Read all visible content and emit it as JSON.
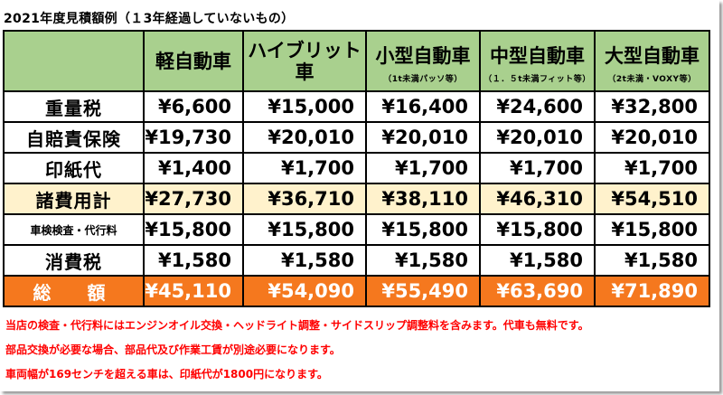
{
  "caption": "2021年度見積額例（１3年経過していないもの）",
  "headers": [
    {
      "name": "",
      "note": ""
    },
    {
      "name": "軽自動車",
      "note": ""
    },
    {
      "name": "ハイブリット車",
      "note": ""
    },
    {
      "name": "小型自動車",
      "note": "（1t未満パッソ等）"
    },
    {
      "name": "中型自動車",
      "note": "（１．５t未満フィット等）"
    },
    {
      "name": "大型自動車",
      "note": "（2t未満・VOXY等）"
    }
  ],
  "rows": [
    {
      "label": "重量税",
      "values": [
        "¥6,600",
        "¥15,000",
        "¥16,400",
        "¥24,600",
        "¥32,800"
      ]
    },
    {
      "label": "自賠責保険",
      "values": [
        "¥19,730",
        "¥20,010",
        "¥20,010",
        "¥20,010",
        "¥20,010"
      ]
    },
    {
      "label": "印紙代",
      "values": [
        "¥1,400",
        "¥1,700",
        "¥1,700",
        "¥1,700",
        "¥1,700"
      ]
    },
    {
      "label": "諸費用計",
      "values": [
        "¥27,730",
        "¥36,710",
        "¥38,110",
        "¥46,310",
        "¥54,510"
      ]
    },
    {
      "label": "車検検査・代行料",
      "values": [
        "¥15,800",
        "¥15,800",
        "¥15,800",
        "¥15,800",
        "¥15,800"
      ]
    },
    {
      "label": "消費税",
      "values": [
        "¥1,580",
        "¥1,580",
        "¥1,580",
        "¥1,580",
        "¥1,580"
      ]
    },
    {
      "label": "総　額",
      "values": [
        "¥45,110",
        "¥54,090",
        "¥55,490",
        "¥63,690",
        "¥71,890"
      ]
    }
  ],
  "notes": [
    "当店の検査・代行料にはエンジンオイル交換・ヘッドライト調整・サイドスリップ調整料を含みます。代車も無料です。",
    "部品交換が必要な場合、部品代及び作業工賃が別途必要になります。",
    "車両幅が169センチを超える車は、印紙代が1800円になります。"
  ],
  "colors": {
    "header": "#a9d08e",
    "subtotal": "#fff2cc",
    "total": "#f5781e",
    "notes": "#ff0000"
  }
}
